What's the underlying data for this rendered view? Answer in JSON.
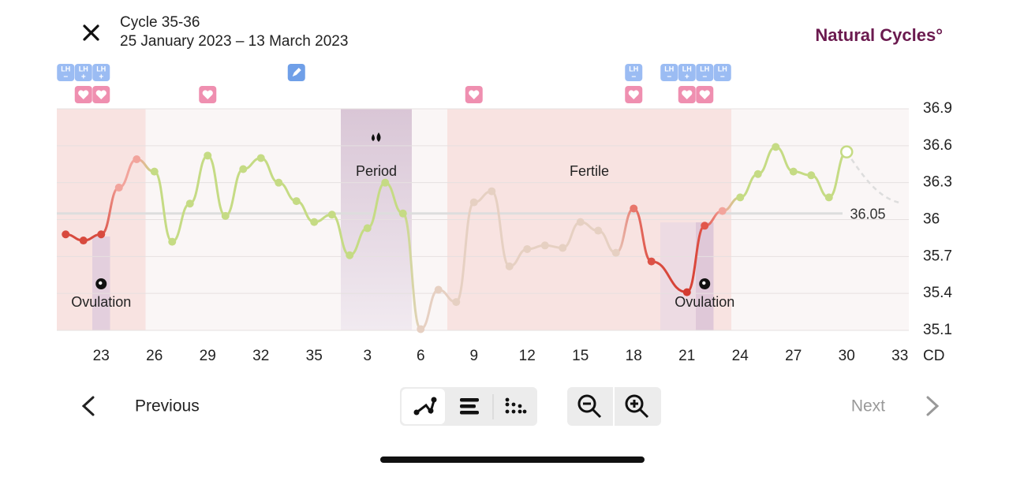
{
  "header": {
    "title": "Cycle 35-36",
    "subtitle": "25 January 2023 – 13 March 2023",
    "brand": "Natural Cycles°"
  },
  "chart_data": {
    "type": "line",
    "x": [
      21,
      22,
      23,
      24,
      25,
      26,
      27,
      28,
      29,
      30,
      31,
      32,
      33,
      34,
      35,
      36,
      37,
      38,
      39,
      40,
      41,
      42,
      43,
      44,
      45,
      46,
      47,
      48,
      49,
      50,
      51,
      52,
      53,
      54,
      56,
      57,
      58,
      59,
      60,
      61,
      62,
      63,
      64,
      65
    ],
    "series": [
      {
        "values": [
          35.88,
          35.83,
          35.88,
          36.26,
          36.49,
          36.39,
          35.82,
          36.13,
          36.52,
          36.03,
          36.41,
          36.5,
          36.3,
          36.15,
          35.98,
          36.04,
          35.71,
          35.93,
          36.3,
          36.05,
          35.11,
          35.43,
          35.33,
          36.14,
          36.23,
          35.62,
          35.76,
          35.79,
          35.77,
          35.98,
          35.91,
          35.73,
          36.09,
          35.66,
          35.41,
          35.95,
          36.07,
          36.18,
          36.37,
          36.59,
          36.39,
          36.36,
          36.18,
          36.55
        ],
        "point_colors": [
          "#d84a3e",
          "#d84a3e",
          "#d84a3e",
          "#f2a49c",
          "#f2a49c",
          "#c5db84",
          "#c5db84",
          "#c5db84",
          "#c5db84",
          "#c5db84",
          "#c5db84",
          "#c5db84",
          "#c5db84",
          "#c5db84",
          "#c5db84",
          "#c5db84",
          "#c5db84",
          "#c5db84",
          "#c5db84",
          "#c5db84",
          "#e6d0c2",
          "#e6d0c2",
          "#e6d0c2",
          "#e6d0c2",
          "#e6d0c2",
          "#e6d0c2",
          "#e6d0c2",
          "#e6d0c2",
          "#e6d0c2",
          "#e6d0c2",
          "#e6d0c2",
          "#e6d0c2",
          "#e8766b",
          "#dc5246",
          "#d33b30",
          "#e2574b",
          "#f2a49c",
          "#c5db84",
          "#c5db84",
          "#c5db84",
          "#c5db84",
          "#c5db84",
          "#c5db84",
          "#c5db84"
        ]
      }
    ],
    "hollow_last": true,
    "xlim": [
      20.5,
      68.5
    ],
    "xticks": [
      23,
      26,
      29,
      32,
      35,
      {
        "value": 38,
        "label": "3"
      },
      {
        "value": 41,
        "label": "6"
      },
      {
        "value": 44,
        "label": "9"
      },
      {
        "value": 47,
        "label": "12"
      },
      {
        "value": 50,
        "label": "15"
      },
      {
        "value": 53,
        "label": "18"
      },
      {
        "value": 56,
        "label": "21"
      },
      {
        "value": 59,
        "label": "24"
      },
      {
        "value": 62,
        "label": "27"
      },
      {
        "value": 65,
        "label": "30"
      },
      {
        "value": 68,
        "label": "33"
      }
    ],
    "x_label": "CD",
    "ylim": [
      35.1,
      36.9
    ],
    "yticks": [
      35.1,
      35.4,
      35.7,
      36.0,
      36.3,
      36.6,
      36.9
    ],
    "grid": true,
    "coverline": {
      "value": 36.05,
      "label": "36.05"
    },
    "pre_fertile_days": [
      21,
      25
    ],
    "period": {
      "label": "Period",
      "days": [
        37,
        40
      ]
    },
    "fertile": {
      "label": "Fertile",
      "days": [
        43,
        58
      ]
    },
    "ovulations": [
      {
        "label": "Ovulation",
        "day": 23
      },
      {
        "label": "Ovulation",
        "day": 57
      }
    ],
    "lh_label": "LH",
    "lh_tests": [
      {
        "day": 21,
        "result": "−"
      },
      {
        "day": 22,
        "result": "+"
      },
      {
        "day": 23,
        "result": "+"
      },
      {
        "day": 53,
        "result": "−"
      },
      {
        "day": 55,
        "result": "−"
      },
      {
        "day": 56,
        "result": "+"
      },
      {
        "day": 57,
        "result": "−"
      },
      {
        "day": 58,
        "result": "−"
      }
    ],
    "sex_days": [
      22,
      23,
      29,
      44,
      53,
      56,
      57
    ],
    "note_days": [
      34
    ]
  },
  "footer": {
    "previous": "Previous",
    "next": "Next"
  }
}
